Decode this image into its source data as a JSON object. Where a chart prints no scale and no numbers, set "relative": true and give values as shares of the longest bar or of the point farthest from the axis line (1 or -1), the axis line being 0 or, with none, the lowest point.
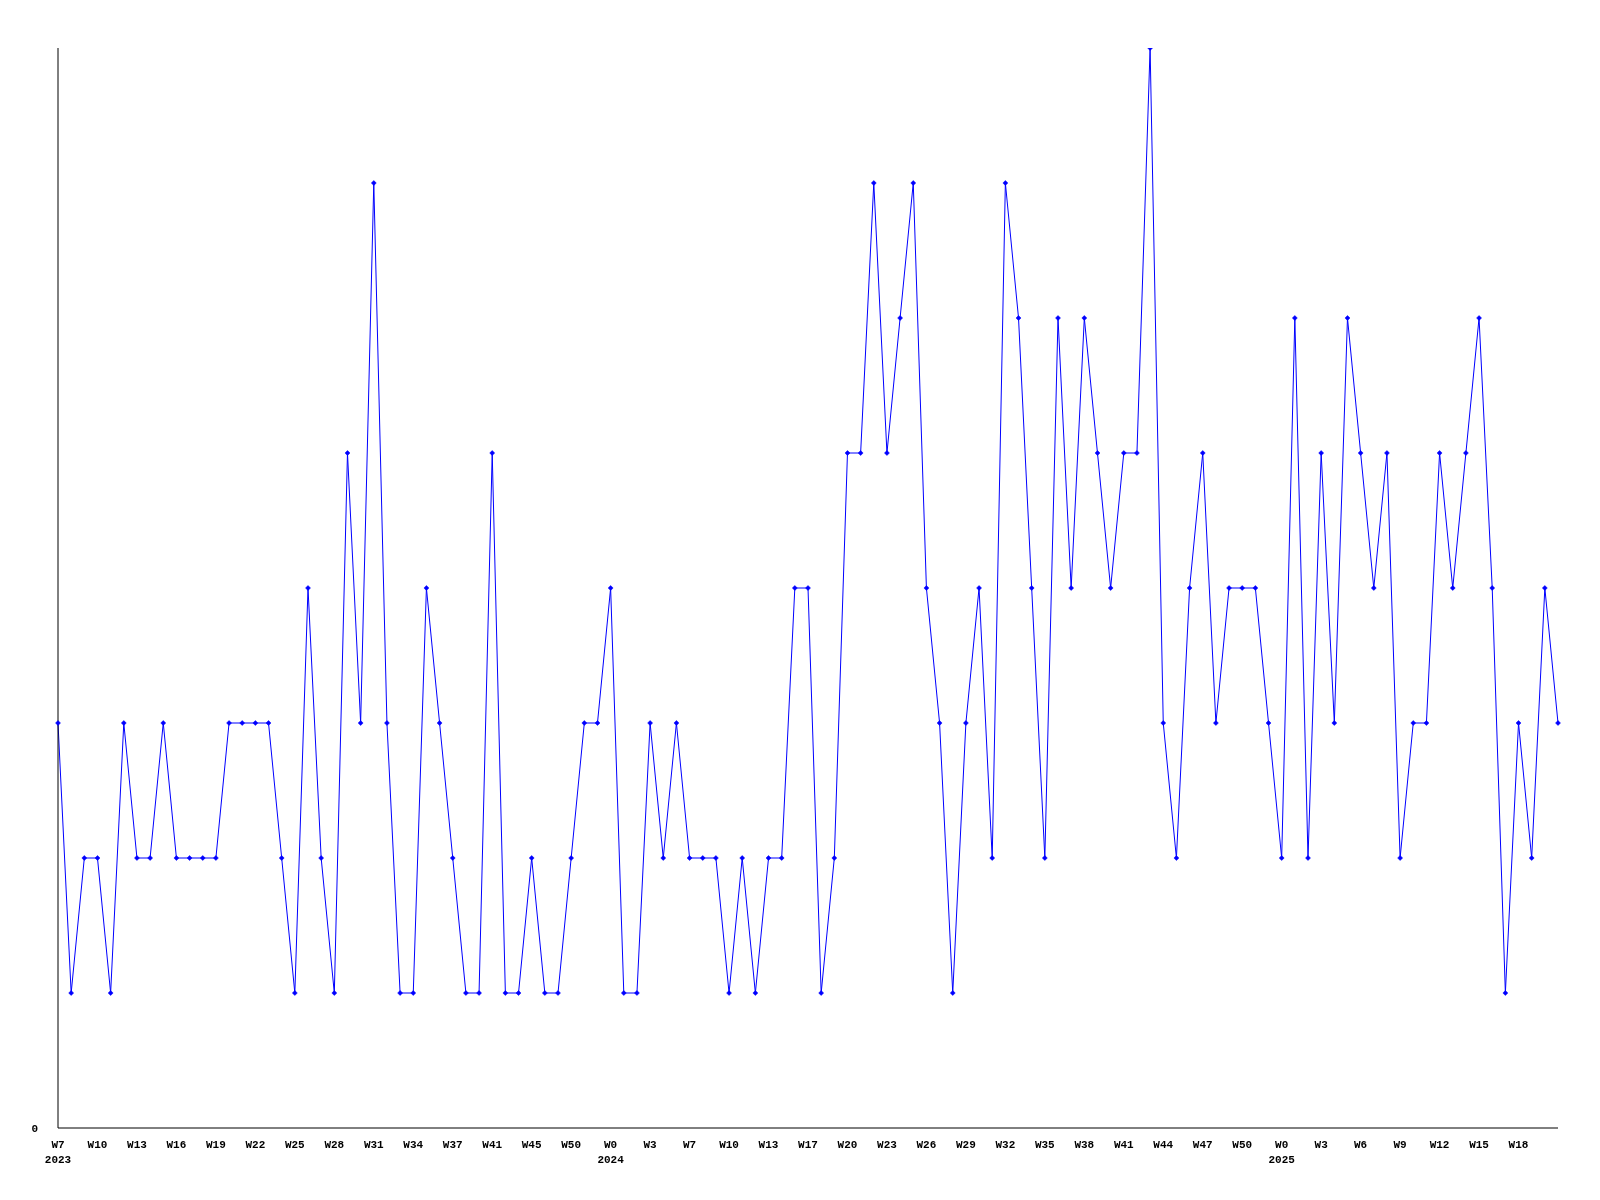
{
  "chart_data": {
    "type": "line",
    "relative": true,
    "marker": "diamond",
    "line_style": "solid",
    "legend": false,
    "annotations": [
      "0"
    ],
    "categories": [
      "W7\n2023",
      null,
      null,
      "W10",
      null,
      null,
      "W13",
      null,
      null,
      "W16",
      null,
      null,
      "W19",
      null,
      null,
      "W22",
      null,
      null,
      "W25",
      null,
      null,
      "W28",
      null,
      null,
      "W31",
      null,
      null,
      "W34",
      null,
      null,
      "W37",
      null,
      null,
      "W41",
      null,
      null,
      "W45",
      null,
      null,
      "W50",
      null,
      null,
      "W0\n2024",
      null,
      null,
      "W3",
      null,
      null,
      "W7",
      null,
      null,
      "W10",
      null,
      null,
      "W13",
      null,
      null,
      "W17",
      null,
      null,
      "W20",
      null,
      null,
      "W23",
      null,
      null,
      "W26",
      null,
      null,
      "W29",
      null,
      null,
      "W32",
      null,
      null,
      "W35",
      null,
      null,
      "W38",
      null,
      null,
      "W41",
      null,
      null,
      "W44",
      null,
      null,
      "W47",
      null,
      null,
      "W50",
      null,
      null,
      "W0\n2025",
      null,
      null,
      "W3",
      null,
      null,
      "W6",
      null,
      null,
      "W9",
      null,
      null,
      "W12",
      null,
      null,
      "W15",
      null,
      null,
      "W18",
      null,
      null,
      null
    ],
    "series": [
      {
        "color": "#0000ff",
        "values": [
          0.375,
          0.125,
          0.25,
          0.25,
          0.125,
          0.375,
          0.25,
          0.25,
          0.375,
          0.25,
          0.25,
          0.25,
          0.25,
          0.375,
          0.375,
          0.375,
          0.375,
          0.25,
          0.125,
          0.5,
          0.25,
          0.125,
          0.625,
          0.375,
          0.875,
          0.375,
          0.125,
          0.125,
          0.5,
          0.375,
          0.25,
          0.125,
          0.125,
          0.625,
          0.125,
          0.125,
          0.25,
          0.125,
          0.125,
          0.25,
          0.375,
          0.375,
          0.5,
          0.125,
          0.125,
          0.375,
          0.25,
          0.375,
          0.25,
          0.25,
          0.25,
          0.125,
          0.25,
          0.125,
          0.25,
          0.25,
          0.5,
          0.5,
          0.125,
          0.25,
          0.625,
          0.625,
          0.875,
          0.625,
          0.75,
          0.875,
          0.5,
          0.375,
          0.125,
          0.375,
          0.5,
          0.25,
          0.875,
          0.75,
          0.5,
          0.25,
          0.75,
          0.5,
          0.75,
          0.625,
          0.5,
          0.625,
          0.625,
          1,
          0.375,
          0.25,
          0.5,
          0.625,
          0.375,
          0.5,
          0.5,
          0.5,
          0.375,
          0.25,
          0.75,
          0.25,
          0.625,
          0.375,
          0.75,
          0.625,
          0.5,
          0.625,
          0.25,
          0.375,
          0.375,
          0.625,
          0.5,
          0.625,
          0.75,
          0.5,
          0.125,
          0.375,
          0.25,
          0.5,
          0.375
        ]
      }
    ]
  }
}
